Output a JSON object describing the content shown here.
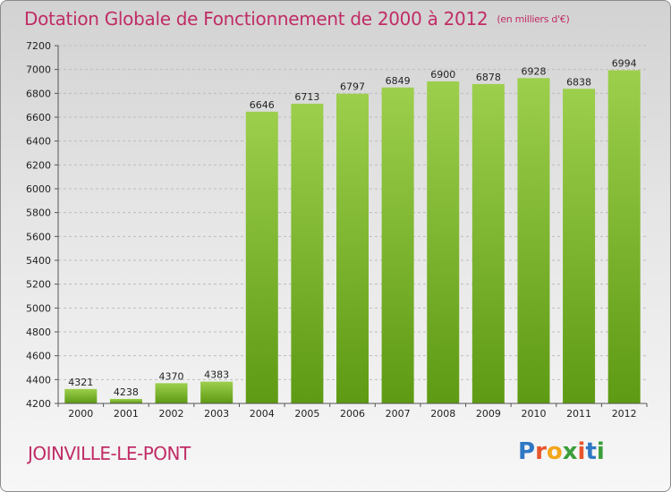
{
  "header": {
    "title": "Dotation Globale de Fonctionnement de 2000 à 2012",
    "subtitle": "(en milliers d'€)"
  },
  "footer": {
    "commune": "JOINVILLE-LE-PONT",
    "logo_text": "Proxiti"
  },
  "colors": {
    "title": "#c02c66",
    "bar_top": "#9ccf4c",
    "bar_bottom": "#5e9a14",
    "grid": "#bdbdbd",
    "logo_letters": [
      "#2f78c4",
      "#e9542b",
      "#f2a61b",
      "#3a9e3a",
      "#e9542b",
      "#2f78c4",
      "#3a9e3a"
    ]
  },
  "chart_data": {
    "type": "bar",
    "title": "Dotation Globale de Fonctionnement de 2000 à 2012",
    "subtitle": "(en milliers d'€)",
    "categories": [
      "2000",
      "2001",
      "2002",
      "2003",
      "2004",
      "2005",
      "2006",
      "2007",
      "2008",
      "2009",
      "2010",
      "2011",
      "2012"
    ],
    "values": [
      4321,
      4238,
      4370,
      4383,
      6646,
      6713,
      6797,
      6849,
      6900,
      6878,
      6928,
      6838,
      6994
    ],
    "ylim": [
      4200,
      7200
    ],
    "yticks": [
      4200,
      4400,
      4600,
      4800,
      5000,
      5200,
      5400,
      5600,
      5800,
      6000,
      6200,
      6400,
      6600,
      6800,
      7000,
      7200
    ],
    "grid": true,
    "legend": "none"
  }
}
